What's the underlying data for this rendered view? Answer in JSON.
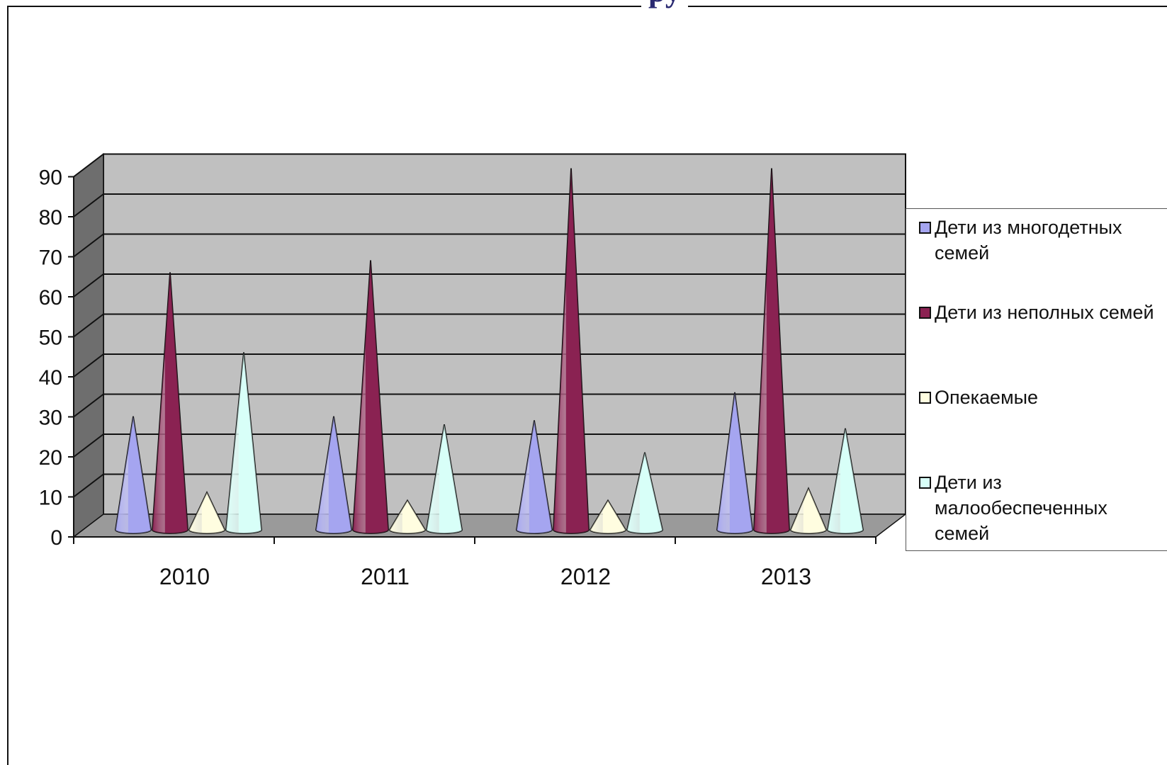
{
  "title_fragment": "ру",
  "chart_data": {
    "type": "bar",
    "style": "3d-cone",
    "categories": [
      "2010",
      "2011",
      "2012",
      "2013"
    ],
    "series": [
      {
        "name": "Дети из многодетных семей",
        "values": [
          28,
          28,
          27,
          34
        ],
        "color": "#a5a5f0"
      },
      {
        "name": "Дети из неполных семей",
        "values": [
          64,
          67,
          90,
          90
        ],
        "color": "#8b2252"
      },
      {
        "name": "Опекаемые",
        "values": [
          9,
          7,
          7,
          10
        ],
        "color": "#fffde0"
      },
      {
        "name": "Дети из малообеспеченных семей",
        "values": [
          44,
          26,
          19,
          25
        ],
        "color": "#d8fff8"
      }
    ],
    "yticks": [
      "0",
      "10",
      "20",
      "30",
      "40",
      "50",
      "60",
      "70",
      "80",
      "90"
    ],
    "ylim": [
      0,
      90
    ],
    "grid": true,
    "legend_position": "right"
  },
  "legend": [
    {
      "label": "Дети из многодетных семей",
      "color": "#a5a5f0"
    },
    {
      "label": "Дети из неполных семей",
      "color": "#8b2252"
    },
    {
      "label": "Опекаемые",
      "color": "#fffde0"
    },
    {
      "label": "Дети из малообеспеченных семей",
      "color": "#d8fff8"
    }
  ],
  "colors": {
    "wall": "#c0c0c0",
    "side_wall": "#6e6e6e",
    "floor": "#9a9a9a"
  }
}
